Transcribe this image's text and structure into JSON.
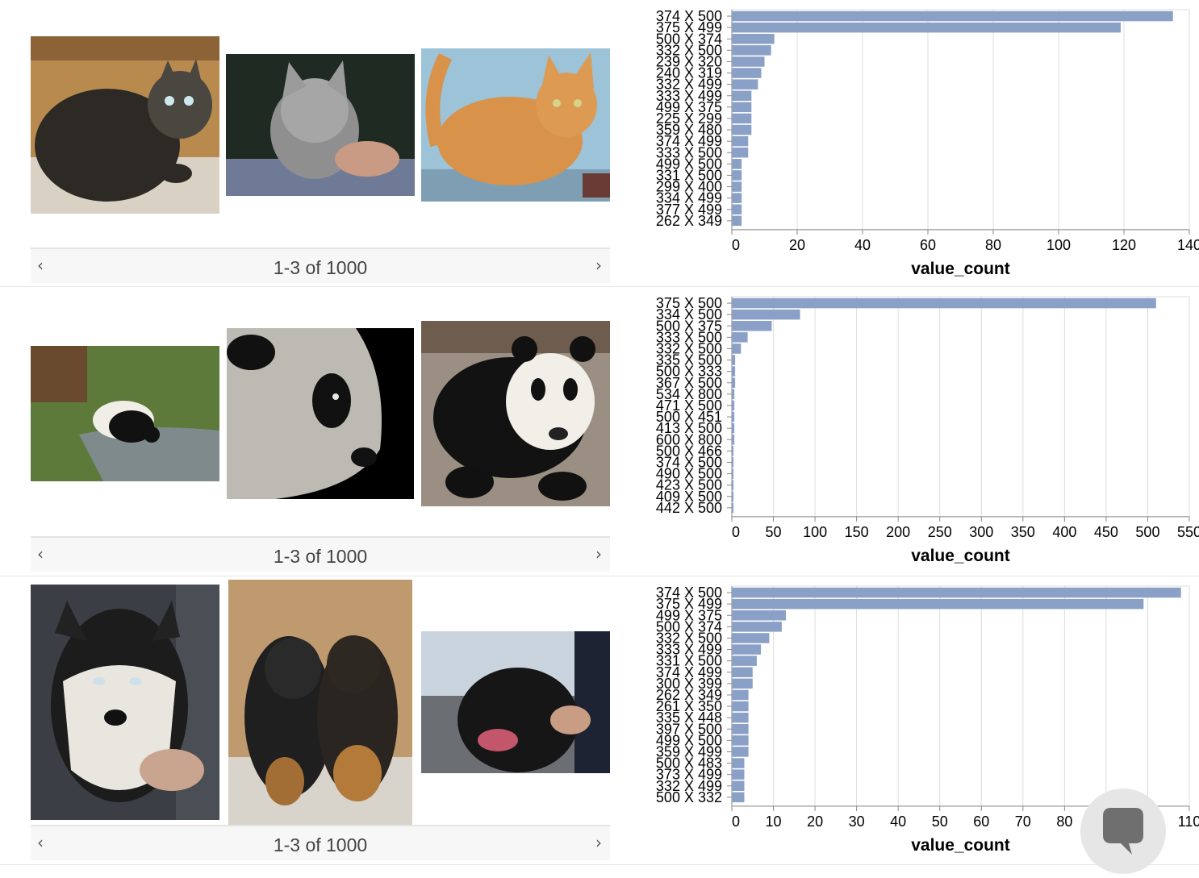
{
  "rows": [
    {
      "gallery": {
        "images": [
          {
            "name": "tabby-cat-sitting-image"
          },
          {
            "name": "grey-kitten-image"
          },
          {
            "name": "orange-tabby-cat-image"
          }
        ],
        "pager": {
          "prev_icon": "chevron-left-icon",
          "next_icon": "chevron-right-icon",
          "prev_glyph": "‹",
          "next_glyph": "›",
          "count_text": "1-3 of 1000"
        }
      },
      "chart_data": {
        "type": "bar",
        "orientation": "horizontal",
        "categories": [
          "374 X 500",
          "375 X 499",
          "500 X 374",
          "332 X 500",
          "239 X 320",
          "240 X 319",
          "332 X 499",
          "333 X 499",
          "499 X 375",
          "225 X 299",
          "359 X 480",
          "374 X 499",
          "333 X 500",
          "499 X 500",
          "331 X 500",
          "299 X 400",
          "334 X 499",
          "377 X 499",
          "262 X 349"
        ],
        "values": [
          135,
          119,
          13,
          12,
          10,
          9,
          8,
          6,
          6,
          6,
          6,
          5,
          5,
          3,
          3,
          3,
          3,
          3,
          3
        ],
        "xlabel": "value_count",
        "xlim": [
          0,
          140
        ],
        "xticks": [
          0,
          20,
          40,
          60,
          80,
          100,
          120,
          140
        ],
        "xtick_labels": [
          "0",
          "20",
          "40",
          "60",
          "80",
          "100",
          "120",
          "140"
        ],
        "grid": true,
        "bar_color": "#8aa0c6"
      }
    },
    {
      "gallery": {
        "images": [
          {
            "name": "panda-by-stream-image"
          },
          {
            "name": "panda-face-closeup-image"
          },
          {
            "name": "panda-walking-image"
          }
        ],
        "pager": {
          "prev_icon": "chevron-left-icon",
          "next_icon": "chevron-right-icon",
          "prev_glyph": "‹",
          "next_glyph": "›",
          "count_text": "1-3 of 1000"
        }
      },
      "chart_data": {
        "type": "bar",
        "orientation": "horizontal",
        "categories": [
          "375 X 500",
          "334 X 500",
          "500 X 375",
          "333 X 500",
          "332 X 500",
          "335 X 500",
          "500 X 333",
          "367 X 500",
          "534 X 800",
          "471 X 500",
          "500 X 451",
          "413 X 500",
          "600 X 800",
          "500 X 466",
          "374 X 500",
          "490 X 500",
          "423 X 500",
          "409 X 500",
          "442 X 500"
        ],
        "values": [
          510,
          82,
          48,
          19,
          11,
          4,
          4,
          4,
          3,
          3,
          3,
          3,
          3,
          2,
          2,
          2,
          2,
          2,
          2
        ],
        "xlabel": "value_count",
        "xlim": [
          0,
          550
        ],
        "xticks": [
          0,
          50,
          100,
          150,
          200,
          250,
          300,
          350,
          400,
          450,
          500,
          550
        ],
        "xtick_labels": [
          "0",
          "50",
          "100",
          "150",
          "200",
          "250",
          "300",
          "350",
          "400",
          "450",
          "500",
          "550"
        ],
        "grid": true,
        "bar_color": "#8aa0c6"
      }
    },
    {
      "gallery": {
        "images": [
          {
            "name": "husky-dog-image"
          },
          {
            "name": "two-puppies-image"
          },
          {
            "name": "black-labrador-image"
          }
        ],
        "pager": {
          "prev_icon": "chevron-left-icon",
          "next_icon": "chevron-right-icon",
          "prev_glyph": "‹",
          "next_glyph": "›",
          "count_text": "1-3 of 1000"
        }
      },
      "chart_data": {
        "type": "bar",
        "orientation": "horizontal",
        "categories": [
          "374 X 500",
          "375 X 499",
          "499 X 375",
          "500 X 374",
          "332 X 500",
          "333 X 499",
          "331 X 500",
          "374 X 499",
          "300 X 399",
          "262 X 349",
          "261 X 350",
          "335 X 448",
          "397 X 500",
          "499 X 500",
          "359 X 499",
          "500 X 483",
          "373 X 499",
          "332 X 499",
          "500 X 332"
        ],
        "values": [
          108,
          99,
          13,
          12,
          9,
          7,
          6,
          5,
          5,
          4,
          4,
          4,
          4,
          4,
          4,
          3,
          3,
          3,
          3
        ],
        "xlabel": "value_count",
        "xlim": [
          0,
          110
        ],
        "xticks": [
          0,
          10,
          20,
          30,
          40,
          50,
          60,
          70,
          80,
          90,
          100,
          110
        ],
        "xtick_labels": [
          "0",
          "10",
          "20",
          "30",
          "40",
          "50",
          "60",
          "70",
          "80",
          "90",
          "100",
          "110"
        ],
        "grid": true,
        "bar_color": "#8aa0c6"
      }
    }
  ],
  "chat_button": {
    "icon": "chat-bubble-icon"
  },
  "colors": {
    "bar": "#8aa0c6",
    "grid": "#dddddd",
    "axis": "#888888",
    "chat_bg": "#e6e6e6",
    "chat_icon": "#6f6f6f"
  }
}
